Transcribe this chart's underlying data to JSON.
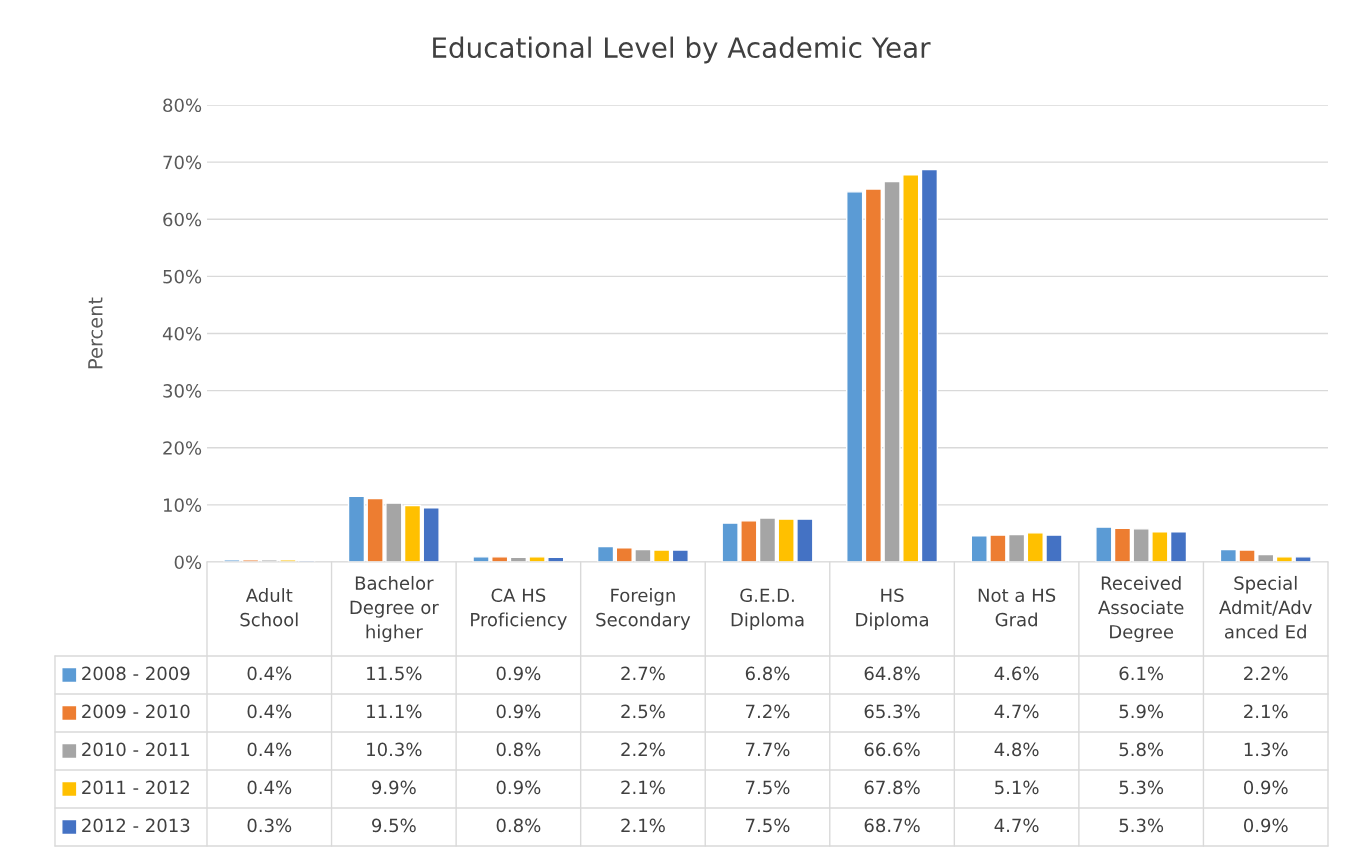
{
  "chart_data": {
    "type": "bar",
    "title": "Educational Level by Academic Year",
    "ylabel": "Percent",
    "categories": [
      "Adult\nSchool",
      "Bachelor\nDegree or\nhigher",
      "CA HS\nProficiency",
      "Foreign\nSecondary",
      "G.E.D.\nDiploma",
      "HS\nDiploma",
      "Not a HS\nGrad",
      "Received\nAssociate\nDegree",
      "Special\nAdmit/Adv\nanced Ed"
    ],
    "series": [
      {
        "name": "2008 - 2009",
        "color": "#5b9bd5",
        "values": [
          0.4,
          11.5,
          0.9,
          2.7,
          6.8,
          64.8,
          4.6,
          6.1,
          2.2
        ],
        "value_labels": [
          "0.4%",
          "11.5%",
          "0.9%",
          "2.7%",
          "6.8%",
          "64.8%",
          "4.6%",
          "6.1%",
          "2.2%"
        ]
      },
      {
        "name": "2009 - 2010",
        "color": "#ed7d31",
        "values": [
          0.4,
          11.1,
          0.9,
          2.5,
          7.2,
          65.3,
          4.7,
          5.9,
          2.1
        ],
        "value_labels": [
          "0.4%",
          "11.1%",
          "0.9%",
          "2.5%",
          "7.2%",
          "65.3%",
          "4.7%",
          "5.9%",
          "2.1%"
        ]
      },
      {
        "name": "2010 - 2011",
        "color": "#a5a5a5",
        "values": [
          0.4,
          10.3,
          0.8,
          2.2,
          7.7,
          66.6,
          4.8,
          5.8,
          1.3
        ],
        "value_labels": [
          "0.4%",
          "10.3%",
          "0.8%",
          "2.2%",
          "7.7%",
          "66.6%",
          "4.8%",
          "5.8%",
          "1.3%"
        ]
      },
      {
        "name": "2011 - 2012",
        "color": "#ffc000",
        "values": [
          0.4,
          9.9,
          0.9,
          2.1,
          7.5,
          67.8,
          5.1,
          5.3,
          0.9
        ],
        "value_labels": [
          "0.4%",
          "9.9%",
          "0.9%",
          "2.1%",
          "7.5%",
          "67.8%",
          "5.1%",
          "5.3%",
          "0.9%"
        ]
      },
      {
        "name": "2012 - 2013",
        "color": "#4472c4",
        "values": [
          0.3,
          9.5,
          0.8,
          2.1,
          7.5,
          68.7,
          4.7,
          5.3,
          0.9
        ],
        "value_labels": [
          "0.3%",
          "9.5%",
          "0.8%",
          "2.1%",
          "7.5%",
          "68.7%",
          "4.7%",
          "5.3%",
          "0.9%"
        ]
      }
    ],
    "ylim": [
      0,
      80
    ],
    "yticks": [
      {
        "value": 0,
        "label": "0%"
      },
      {
        "value": 10,
        "label": "10%"
      },
      {
        "value": 20,
        "label": "20%"
      },
      {
        "value": 30,
        "label": "30%"
      },
      {
        "value": 40,
        "label": "40%"
      },
      {
        "value": 50,
        "label": "50%"
      },
      {
        "value": 60,
        "label": "60%"
      },
      {
        "value": 70,
        "label": "70%"
      },
      {
        "value": 80,
        "label": "80%"
      }
    ],
    "grid": "y",
    "legend": "bottom"
  }
}
